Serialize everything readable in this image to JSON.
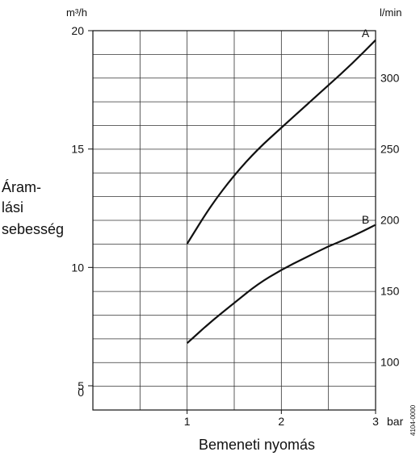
{
  "chart_data": {
    "type": "line",
    "xlabel": "Bemeneti nyomás",
    "x_unit": "bar",
    "xlim": [
      0,
      3
    ],
    "x_ticks": [
      1,
      2,
      3
    ],
    "ylabel_lines": [
      "Áram-",
      "lási",
      "sebesség"
    ],
    "y_left_unit": "m³/h",
    "y_left_ticks": [
      0,
      5,
      10,
      15,
      20
    ],
    "ylim_left": [
      0,
      20
    ],
    "y_right_unit": "l/min",
    "y_right_ticks": [
      100,
      150,
      200,
      250,
      300
    ],
    "grid": true,
    "series": [
      {
        "name": "A",
        "x": [
          1.0,
          1.25,
          1.5,
          1.75,
          2.0,
          2.25,
          2.5,
          2.75,
          3.0
        ],
        "y": [
          11.0,
          12.6,
          13.9,
          15.0,
          15.9,
          16.8,
          17.7,
          18.6,
          19.6
        ]
      },
      {
        "name": "B",
        "x": [
          1.0,
          1.25,
          1.5,
          1.75,
          2.0,
          2.25,
          2.5,
          2.75,
          3.0
        ],
        "y": [
          6.8,
          7.7,
          8.5,
          9.3,
          9.9,
          10.4,
          10.9,
          11.3,
          11.8
        ]
      }
    ],
    "figure_ref": "4104-0000"
  }
}
